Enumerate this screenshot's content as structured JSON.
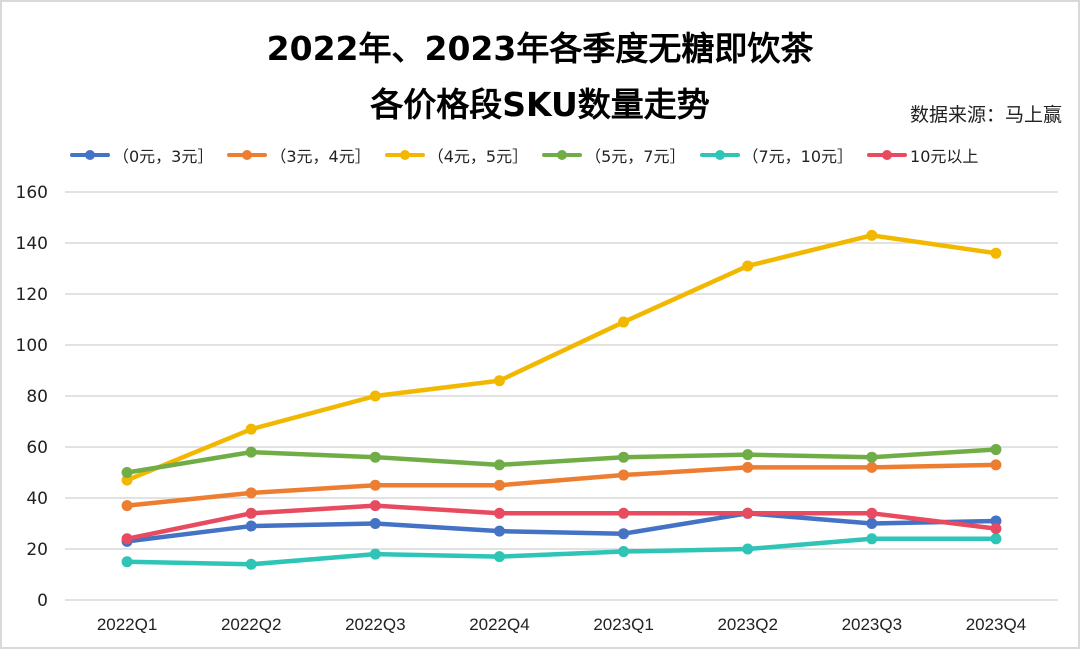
{
  "chart_data": {
    "type": "line",
    "title_line1": "2022年、2023年各季度无糖即饮茶",
    "title_line2": "各价格段SKU数量走势",
    "source": "数据来源：马上赢",
    "xlabel": "",
    "ylabel": "",
    "categories": [
      "2022Q1",
      "2022Q2",
      "2022Q3",
      "2022Q4",
      "2023Q1",
      "2023Q2",
      "2023Q3",
      "2023Q4"
    ],
    "ylim": [
      0,
      160
    ],
    "yticks": [
      "0",
      "20",
      "40",
      "60",
      "80",
      "100",
      "120",
      "140",
      "160"
    ],
    "ytick_values": [
      0,
      20,
      40,
      60,
      80,
      100,
      120,
      140,
      160
    ],
    "grid": true,
    "legend_position": "top",
    "series": [
      {
        "name": "（0元，3元］",
        "color": "#4472c4",
        "values": [
          23,
          29,
          30,
          27,
          26,
          34,
          30,
          31
        ]
      },
      {
        "name": "（3元，4元］",
        "color": "#ed7d31",
        "values": [
          37,
          42,
          45,
          45,
          49,
          52,
          52,
          53
        ]
      },
      {
        "name": "（4元，5元］",
        "color": "#f2b800",
        "values": [
          47,
          67,
          80,
          86,
          109,
          131,
          143,
          136
        ]
      },
      {
        "name": "（5元，7元］",
        "color": "#70ad47",
        "values": [
          50,
          58,
          56,
          53,
          56,
          57,
          56,
          59
        ]
      },
      {
        "name": "（7元，10元］",
        "color": "#2ec4b6",
        "values": [
          15,
          14,
          18,
          17,
          19,
          20,
          24,
          24
        ]
      },
      {
        "name": "10元以上",
        "color": "#e84a5f",
        "values": [
          24,
          34,
          37,
          34,
          34,
          34,
          34,
          28
        ]
      }
    ]
  }
}
